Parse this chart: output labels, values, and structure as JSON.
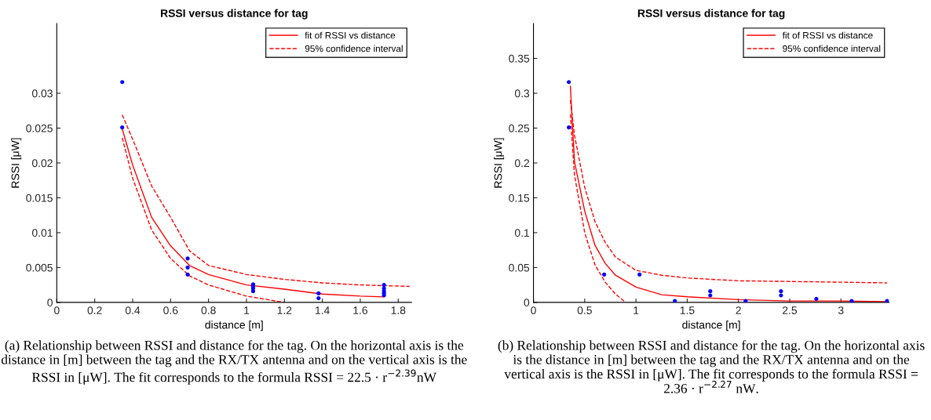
{
  "chart_data": [
    {
      "type": "scatter",
      "title": "RSSI versus distance for tag",
      "xlabel": "distance [m]",
      "ylabel": "RSSI [μW]",
      "xlim": [
        0,
        1.87
      ],
      "ylim": [
        0,
        0.04
      ],
      "xticks": [
        0,
        0.2,
        0.4,
        0.6,
        0.8,
        1,
        1.2,
        1.4,
        1.6,
        1.8
      ],
      "yticks": [
        0,
        0.005,
        0.01,
        0.015,
        0.02,
        0.025,
        0.03
      ],
      "grid": false,
      "legend": "top right",
      "series": [
        {
          "color": "#0000ff",
          "marker": "circle",
          "x": [
            0.345,
            0.345,
            0.69,
            0.69,
            0.69,
            1.035,
            1.035,
            1.035,
            1.035,
            1.38,
            1.38,
            1.725,
            1.725,
            1.725,
            1.725,
            1.725
          ],
          "values": [
            0.0316,
            0.0251,
            0.0063,
            0.005,
            0.004,
            0.0026,
            0.0023,
            0.002,
            0.0016,
            0.0013,
            0.0006,
            0.0025,
            0.002,
            0.0016,
            0.0013,
            0.001
          ]
        },
        {
          "type": "line",
          "name": "fit of RSSI vs distance",
          "color": "#ff0000",
          "line_style": "solid",
          "x": [
            0.345,
            0.4,
            0.5,
            0.6,
            0.7,
            0.8,
            1.0,
            1.2,
            1.4,
            1.6,
            1.725
          ],
          "values": [
            0.0249,
            0.0197,
            0.0122,
            0.0081,
            0.0053,
            0.004,
            0.0025,
            0.0019,
            0.0012,
            0.0009,
            0.0008
          ]
        },
        {
          "type": "line",
          "name": "95% confidence interval",
          "color": "#ff0000",
          "line_style": "dashed",
          "x": [
            0.345,
            0.4,
            0.5,
            0.6,
            0.7,
            0.8,
            1.0,
            1.2,
            1.4,
            1.6,
            1.86
          ],
          "values": [
            0.0269,
            0.0234,
            0.0167,
            0.0122,
            0.0074,
            0.0053,
            0.004,
            0.0033,
            0.0028,
            0.0025,
            0.0023
          ]
        },
        {
          "type": "line",
          "color": "#ff0000",
          "line_style": "dashed",
          "x": [
            0.345,
            0.4,
            0.5,
            0.6,
            0.7,
            0.8,
            1.0,
            1.2
          ],
          "values": [
            0.0236,
            0.0178,
            0.0104,
            0.0063,
            0.0038,
            0.0025,
            0.0009,
            0.0
          ]
        }
      ],
      "annotations": [
        "(a) Relationship between RSSI and distance for the tag. On the horizontal axis is the distance in [m] between the tag and the RX/TX antenna and on the vertical axis is the RSSI in [μW]. The fit corresponds to the formula RSSI = 22.5 · r$^{−2.39}$nW"
      ]
    },
    {
      "type": "scatter",
      "title": "RSSI versus distance for tag",
      "xlabel": "distance [m]",
      "ylabel": "RSSI [μW]",
      "xlim": [
        0,
        3.47
      ],
      "ylim": [
        0,
        0.4
      ],
      "xticks": [
        0,
        0.5,
        1,
        1.5,
        2,
        2.5,
        3
      ],
      "yticks": [
        0,
        0.05,
        0.1,
        0.15,
        0.2,
        0.25,
        0.3,
        0.35
      ],
      "grid": false,
      "legend": "top right",
      "series": [
        {
          "color": "#0000ff",
          "marker": "circle",
          "x": [
            0.345,
            0.345,
            0.69,
            1.035,
            1.38,
            1.725,
            1.725,
            2.07,
            2.415,
            2.415,
            2.76,
            3.105,
            3.45
          ],
          "values": [
            0.316,
            0.251,
            0.04,
            0.04,
            0.002,
            0.016,
            0.01,
            0.002,
            0.016,
            0.01,
            0.005,
            0.002,
            0.002
          ]
        },
        {
          "type": "line",
          "name": "fit of RSSI vs distance",
          "color": "#ff0000",
          "line_style": "solid",
          "x": [
            0.36,
            0.4,
            0.5,
            0.6,
            0.7,
            0.8,
            1.0,
            1.25,
            1.5,
            2,
            2.5,
            3,
            3.45
          ],
          "values": [
            0.31,
            0.202,
            0.131,
            0.082,
            0.056,
            0.039,
            0.022,
            0.011,
            0.008,
            0.004,
            0.002,
            0.002,
            0.001
          ]
        },
        {
          "type": "line",
          "name": "95% confidence interval",
          "color": "#ff0000",
          "line_style": "dashed",
          "x": [
            0.36,
            0.4,
            0.5,
            0.6,
            0.7,
            0.8,
            1.0,
            1.25,
            1.5,
            2,
            2.5,
            3,
            3.45
          ],
          "values": [
            0.29,
            0.24,
            0.165,
            0.116,
            0.086,
            0.065,
            0.046,
            0.039,
            0.035,
            0.031,
            0.03,
            0.029,
            0.028
          ]
        },
        {
          "type": "line",
          "color": "#ff0000",
          "line_style": "dashed",
          "x": [
            0.36,
            0.4,
            0.5,
            0.6,
            0.7,
            0.8,
            0.9
          ],
          "values": [
            0.27,
            0.183,
            0.1,
            0.054,
            0.029,
            0.012,
            0.0
          ]
        }
      ],
      "annotations": [
        "(b) Relationship between RSSI and distance for the tag. On the horizontal axis is the distance in [m] between the tag and the RX/TX antenna and on the vertical axis is the RSSI in [μW]. The fit corresponds to the formula RSSI = 2.36 · r$^{−2.27}$ nW."
      ]
    }
  ]
}
